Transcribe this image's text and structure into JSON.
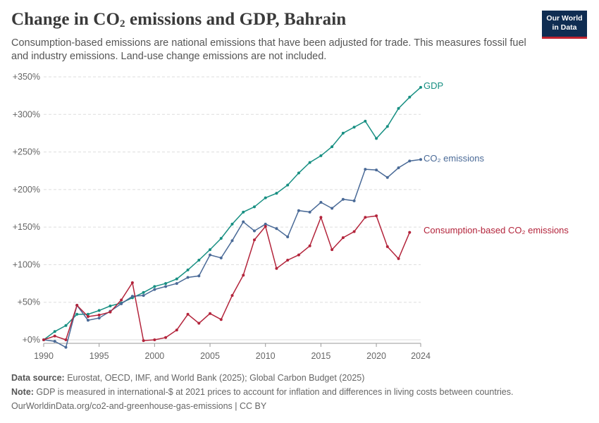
{
  "header": {
    "title_main": "Change in CO",
    "title_sub": "2",
    "title_rest": " emissions and GDP, Bahrain",
    "subtitle": "Consumption-based emissions are national emissions that have been adjusted for trade. This measures fossil fuel and industry emissions. Land-use change emissions are not included."
  },
  "logo": {
    "line1": "Our World",
    "line2": "in Data"
  },
  "footer": {
    "source_label": "Data source:",
    "source_text": " Eurostat, OECD, IMF, and World Bank (2025); Global Carbon Budget (2025)",
    "note_label": "Note:",
    "note_text": " GDP is measured in international-$ at 2021 prices to account for inflation and differences in living costs between countries.",
    "url": "OurWorldinData.org/co2-and-greenhouse-gas-emissions | CC BY"
  },
  "chart_data": {
    "type": "line",
    "x_ticks": [
      1990,
      1995,
      2000,
      2005,
      2010,
      2015,
      2020,
      2024
    ],
    "y_ticks": [
      0,
      50,
      100,
      150,
      200,
      250,
      300,
      350
    ],
    "y_tick_labels": [
      "+0%",
      "+50%",
      "+100%",
      "+150%",
      "+200%",
      "+250%",
      "+300%",
      "+350%"
    ],
    "xlim": [
      1990,
      2024
    ],
    "ylim": [
      -10,
      350
    ],
    "grid": "horizontal-dashed",
    "series": [
      {
        "name": "GDP",
        "color": "#178f82",
        "x": [
          1990,
          1991,
          1992,
          1993,
          1994,
          1995,
          1996,
          1997,
          1998,
          1999,
          2000,
          2001,
          2002,
          2003,
          2004,
          2005,
          2006,
          2007,
          2008,
          2009,
          2010,
          2011,
          2012,
          2013,
          2014,
          2015,
          2016,
          2017,
          2018,
          2019,
          2020,
          2021,
          2022,
          2023,
          2024
        ],
        "y": [
          0,
          11,
          19,
          34,
          34,
          39,
          45,
          49,
          56,
          63,
          71,
          75,
          81,
          93,
          106,
          120,
          135,
          154,
          170,
          177,
          189,
          195,
          206,
          222,
          236,
          245,
          257,
          275,
          283,
          291,
          268,
          284,
          308,
          323,
          336
        ]
      },
      {
        "name": "CO₂ emissions",
        "color": "#4a6a97",
        "x": [
          1990,
          1991,
          1992,
          1993,
          1994,
          1995,
          1996,
          1997,
          1998,
          1999,
          2000,
          2001,
          2002,
          2003,
          2004,
          2005,
          2006,
          2007,
          2008,
          2009,
          2010,
          2011,
          2012,
          2013,
          2014,
          2015,
          2016,
          2017,
          2018,
          2019,
          2020,
          2021,
          2022,
          2023,
          2024
        ],
        "y": [
          0,
          -2,
          -10,
          46,
          26,
          29,
          38,
          48,
          58,
          59,
          67,
          71,
          75,
          83,
          85,
          113,
          109,
          132,
          157,
          145,
          154,
          148,
          137,
          172,
          170,
          183,
          175,
          187,
          185,
          227,
          226,
          216,
          229,
          238,
          240
        ]
      },
      {
        "name": "Consumption-based CO₂ emissions",
        "color": "#b3243b",
        "x": [
          1990,
          1991,
          1992,
          1993,
          1994,
          1995,
          1996,
          1997,
          1998,
          1999,
          2000,
          2001,
          2002,
          2003,
          2004,
          2005,
          2006,
          2007,
          2008,
          2009,
          2010,
          2011,
          2012,
          2013,
          2014,
          2015,
          2016,
          2017,
          2018,
          2019,
          2020,
          2021,
          2022,
          2023,
          2024
        ],
        "y": [
          0,
          5,
          0,
          46,
          31,
          33,
          37,
          53,
          76,
          -1,
          0,
          3,
          13,
          34,
          22,
          35,
          27,
          59,
          86,
          133,
          151,
          95,
          106,
          113,
          125,
          163,
          120,
          136,
          144,
          163,
          165,
          124,
          108,
          143,
          null
        ]
      }
    ]
  }
}
